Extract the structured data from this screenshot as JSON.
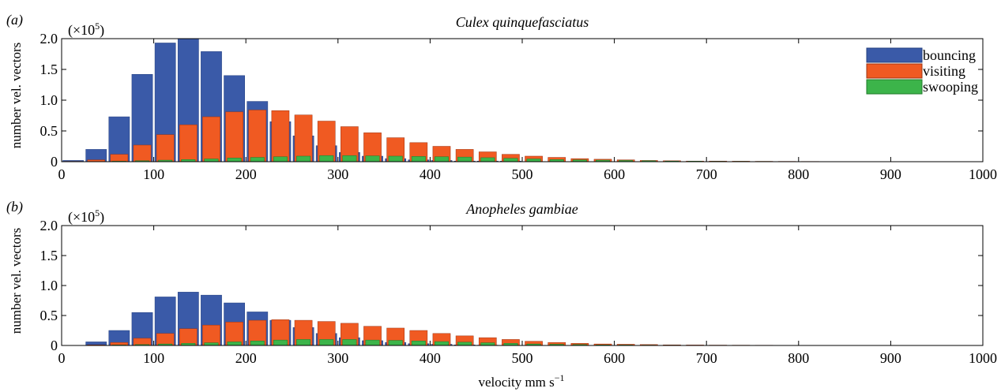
{
  "colors": {
    "bouncing": "#3a5aa8",
    "visiting": "#f05a22",
    "swooping": "#3cb44a"
  },
  "xlabel_text": "velocity mm s",
  "xlabel_sup": "−1",
  "chart_data": [
    {
      "type": "bar",
      "panel_label": "(a)",
      "title": "Culex quinquefasciatus",
      "ylabel": "number vel. vectors",
      "scale_prefix": "(×10",
      "scale_exp": "5",
      "scale_suffix": ")",
      "xlim": [
        0,
        1000
      ],
      "ylim": [
        0,
        2.0
      ],
      "xticks": [
        "0",
        "100",
        "200",
        "300",
        "400",
        "500",
        "600",
        "700",
        "800",
        "900",
        "1000"
      ],
      "yticks": [
        "0",
        "0.5",
        "1.0",
        "1.5",
        "2.0"
      ],
      "legend": {
        "position": "top-right",
        "entries": [
          "bouncing",
          "visiting",
          "swooping"
        ]
      },
      "x": [
        12.5,
        37.5,
        62.5,
        87.5,
        112.5,
        137.5,
        162.5,
        187.5,
        212.5,
        237.5,
        262.5,
        287.5,
        312.5,
        337.5,
        362.5,
        387.5,
        412.5,
        437.5,
        462.5,
        487.5,
        512.5,
        537.5,
        562.5,
        587.5,
        612.5,
        637.5,
        662.5,
        687.5,
        712.5,
        737.5,
        762.5,
        787.5,
        812.5,
        837.5,
        862.5,
        887.5,
        912.5,
        937.5,
        962.5,
        987.5
      ],
      "series": [
        {
          "name": "bouncing",
          "values": [
            0.02,
            0.2,
            0.73,
            1.42,
            1.93,
            2.0,
            1.79,
            1.4,
            0.98,
            0.65,
            0.42,
            0.26,
            0.15,
            0.09,
            0.05,
            0.03,
            0.02,
            0.01,
            0.01,
            0.01,
            0,
            0,
            0,
            0,
            0,
            0,
            0,
            0,
            0,
            0,
            0,
            0,
            0,
            0,
            0,
            0,
            0,
            0,
            0,
            0
          ]
        },
        {
          "name": "visiting",
          "values": [
            0.005,
            0.03,
            0.12,
            0.27,
            0.44,
            0.6,
            0.73,
            0.81,
            0.84,
            0.83,
            0.76,
            0.66,
            0.57,
            0.47,
            0.39,
            0.31,
            0.25,
            0.2,
            0.16,
            0.12,
            0.09,
            0.07,
            0.05,
            0.04,
            0.03,
            0.02,
            0.015,
            0.01,
            0.01,
            0.008,
            0.006,
            0.005,
            0.004,
            0.003,
            0.002,
            0.002,
            0.001,
            0.001,
            0.001,
            0.001
          ]
        },
        {
          "name": "swooping",
          "values": [
            0,
            0.002,
            0.008,
            0.015,
            0.025,
            0.035,
            0.045,
            0.06,
            0.07,
            0.08,
            0.09,
            0.1,
            0.1,
            0.095,
            0.09,
            0.085,
            0.08,
            0.075,
            0.065,
            0.055,
            0.045,
            0.035,
            0.03,
            0.025,
            0.02,
            0.015,
            0.01,
            0.008,
            0.006,
            0.005,
            0.004,
            0.003,
            0.002,
            0.002,
            0.001,
            0.001,
            0.001,
            0.001,
            0,
            0
          ]
        }
      ]
    },
    {
      "type": "bar",
      "panel_label": "(b)",
      "title": "Anopheles gambiae",
      "ylabel": "number vel. vectors",
      "scale_prefix": "(×10",
      "scale_exp": "5",
      "scale_suffix": ")",
      "xlim": [
        0,
        1000
      ],
      "ylim": [
        0,
        2.0
      ],
      "xticks": [
        "0",
        "100",
        "200",
        "300",
        "400",
        "500",
        "600",
        "700",
        "800",
        "900",
        "1000"
      ],
      "yticks": [
        "0",
        "0.5",
        "1.0",
        "1.5",
        "2.0"
      ],
      "x": [
        12.5,
        37.5,
        62.5,
        87.5,
        112.5,
        137.5,
        162.5,
        187.5,
        212.5,
        237.5,
        262.5,
        287.5,
        312.5,
        337.5,
        362.5,
        387.5,
        412.5,
        437.5,
        462.5,
        487.5,
        512.5,
        537.5,
        562.5,
        587.5,
        612.5,
        637.5,
        662.5,
        687.5,
        712.5,
        737.5,
        762.5,
        787.5,
        812.5,
        837.5,
        862.5,
        887.5,
        912.5,
        937.5,
        962.5,
        987.5
      ],
      "series": [
        {
          "name": "bouncing",
          "values": [
            0,
            0.06,
            0.25,
            0.55,
            0.81,
            0.89,
            0.84,
            0.71,
            0.56,
            0.42,
            0.3,
            0.2,
            0.13,
            0.08,
            0.05,
            0.03,
            0.02,
            0.01,
            0.005,
            0.003,
            0,
            0,
            0,
            0,
            0,
            0,
            0,
            0,
            0,
            0,
            0,
            0,
            0,
            0,
            0,
            0,
            0,
            0,
            0,
            0
          ]
        },
        {
          "name": "visiting",
          "values": [
            0,
            0.01,
            0.05,
            0.12,
            0.2,
            0.28,
            0.34,
            0.39,
            0.42,
            0.43,
            0.42,
            0.4,
            0.37,
            0.32,
            0.29,
            0.25,
            0.2,
            0.16,
            0.13,
            0.1,
            0.07,
            0.05,
            0.035,
            0.025,
            0.02,
            0.015,
            0.01,
            0.008,
            0.006,
            0.005,
            0.004,
            0.003,
            0.002,
            0.002,
            0.001,
            0.001,
            0.001,
            0.001,
            0,
            0
          ]
        },
        {
          "name": "swooping",
          "values": [
            0,
            0.002,
            0.008,
            0.015,
            0.025,
            0.035,
            0.045,
            0.06,
            0.075,
            0.09,
            0.1,
            0.1,
            0.1,
            0.09,
            0.085,
            0.075,
            0.065,
            0.055,
            0.045,
            0.035,
            0.025,
            0.02,
            0.015,
            0.01,
            0.008,
            0.006,
            0.004,
            0.003,
            0.002,
            0.002,
            0.001,
            0.001,
            0.001,
            0,
            0,
            0,
            0,
            0,
            0,
            0
          ]
        }
      ]
    }
  ]
}
